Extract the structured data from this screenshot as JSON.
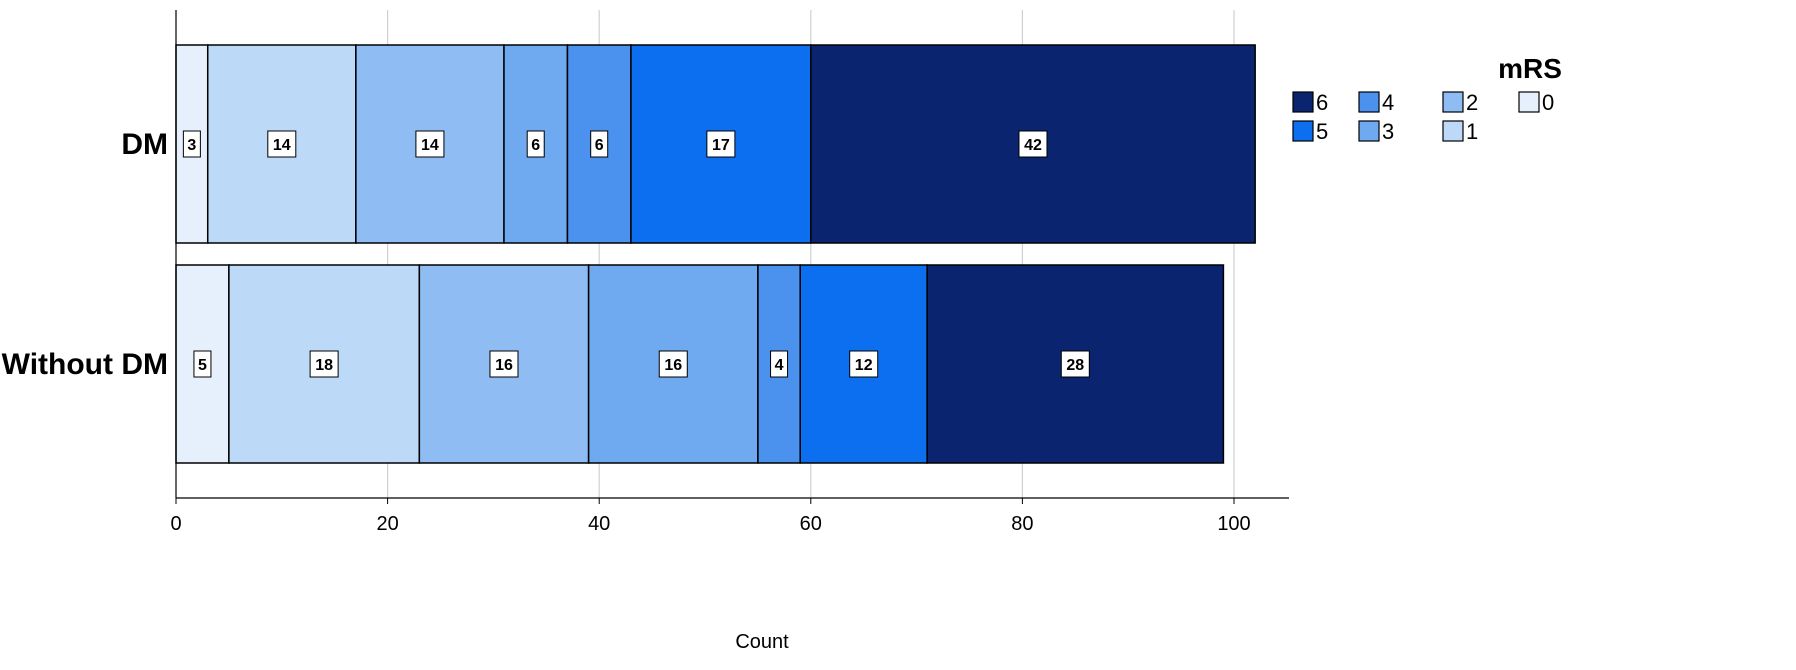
{
  "chart_data": {
    "type": "bar",
    "orientation": "horizontal",
    "stacked": true,
    "title": "",
    "xlabel": "Count",
    "ylabel": "",
    "xlim": [
      0,
      105
    ],
    "x_ticks": [
      0,
      20,
      40,
      60,
      80,
      100
    ],
    "grid": true,
    "categories": [
      "DM",
      "Without DM"
    ],
    "series": [
      {
        "name": "0",
        "values": [
          3,
          5
        ]
      },
      {
        "name": "1",
        "values": [
          14,
          18
        ]
      },
      {
        "name": "2",
        "values": [
          14,
          16
        ]
      },
      {
        "name": "3",
        "values": [
          6,
          16
        ]
      },
      {
        "name": "4",
        "values": [
          6,
          4
        ]
      },
      {
        "name": "5",
        "values": [
          17,
          12
        ]
      },
      {
        "name": "6",
        "values": [
          42,
          28
        ]
      }
    ],
    "series_colors": {
      "0": "#e6f0fc",
      "1": "#bcdaf8",
      "2": "#8fbcf3",
      "3": "#6fa9f0",
      "4": "#4b92ee",
      "5": "#0c6ff0",
      "6": "#0a2470"
    },
    "legend": {
      "title": "mRS",
      "placement": "right",
      "order": [
        "6",
        "5",
        "4",
        "3",
        "2",
        "1",
        "0"
      ]
    }
  }
}
